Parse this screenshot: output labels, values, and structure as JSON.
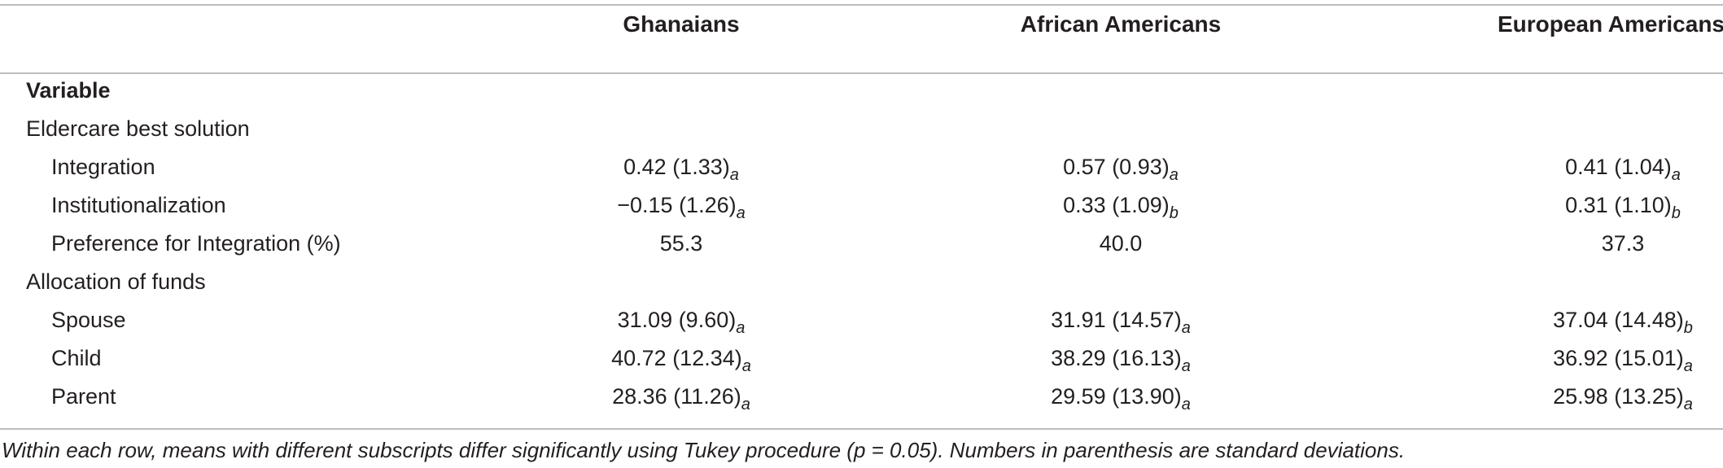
{
  "columns": {
    "group1": "Ghanaians",
    "group2": "African Americans",
    "group3": "European Americans"
  },
  "variable_header": "Variable",
  "sections": [
    {
      "title": "Eldercare best solution",
      "rows": [
        {
          "label": "Integration",
          "v1": "0.42 (1.33)",
          "s1": "a",
          "v2": "0.57 (0.93)",
          "s2": "a",
          "v3": "0.41 (1.04)",
          "s3": "a"
        },
        {
          "label": "Institutionalization",
          "v1": "−0.15 (1.26)",
          "s1": "a",
          "v2": "0.33 (1.09)",
          "s2": "b",
          "v3": "0.31 (1.10)",
          "s3": "b"
        },
        {
          "label": "Preference for Integration (%)",
          "v1": "55.3",
          "s1": "",
          "v2": "40.0",
          "s2": "",
          "v3": "37.3",
          "s3": ""
        }
      ]
    },
    {
      "title": "Allocation of funds",
      "rows": [
        {
          "label": "Spouse",
          "v1": "31.09 (9.60)",
          "s1": "a",
          "v2": "31.91 (14.57)",
          "s2": "a",
          "v3": "37.04 (14.48)",
          "s3": "b"
        },
        {
          "label": "Child",
          "v1": "40.72 (12.34)",
          "s1": "a",
          "v2": "38.29 (16.13)",
          "s2": "a",
          "v3": "36.92 (15.01)",
          "s3": "a"
        },
        {
          "label": "Parent",
          "v1": "28.36 (11.26)",
          "s1": "a",
          "v2": "29.59 (13.90)",
          "s2": "a",
          "v3": "25.98 (13.25)",
          "s3": "a"
        }
      ]
    }
  ],
  "footnote": "Within each row, means with different subscripts differ significantly using Tukey procedure (p = 0.05). Numbers in parenthesis are standard deviations."
}
